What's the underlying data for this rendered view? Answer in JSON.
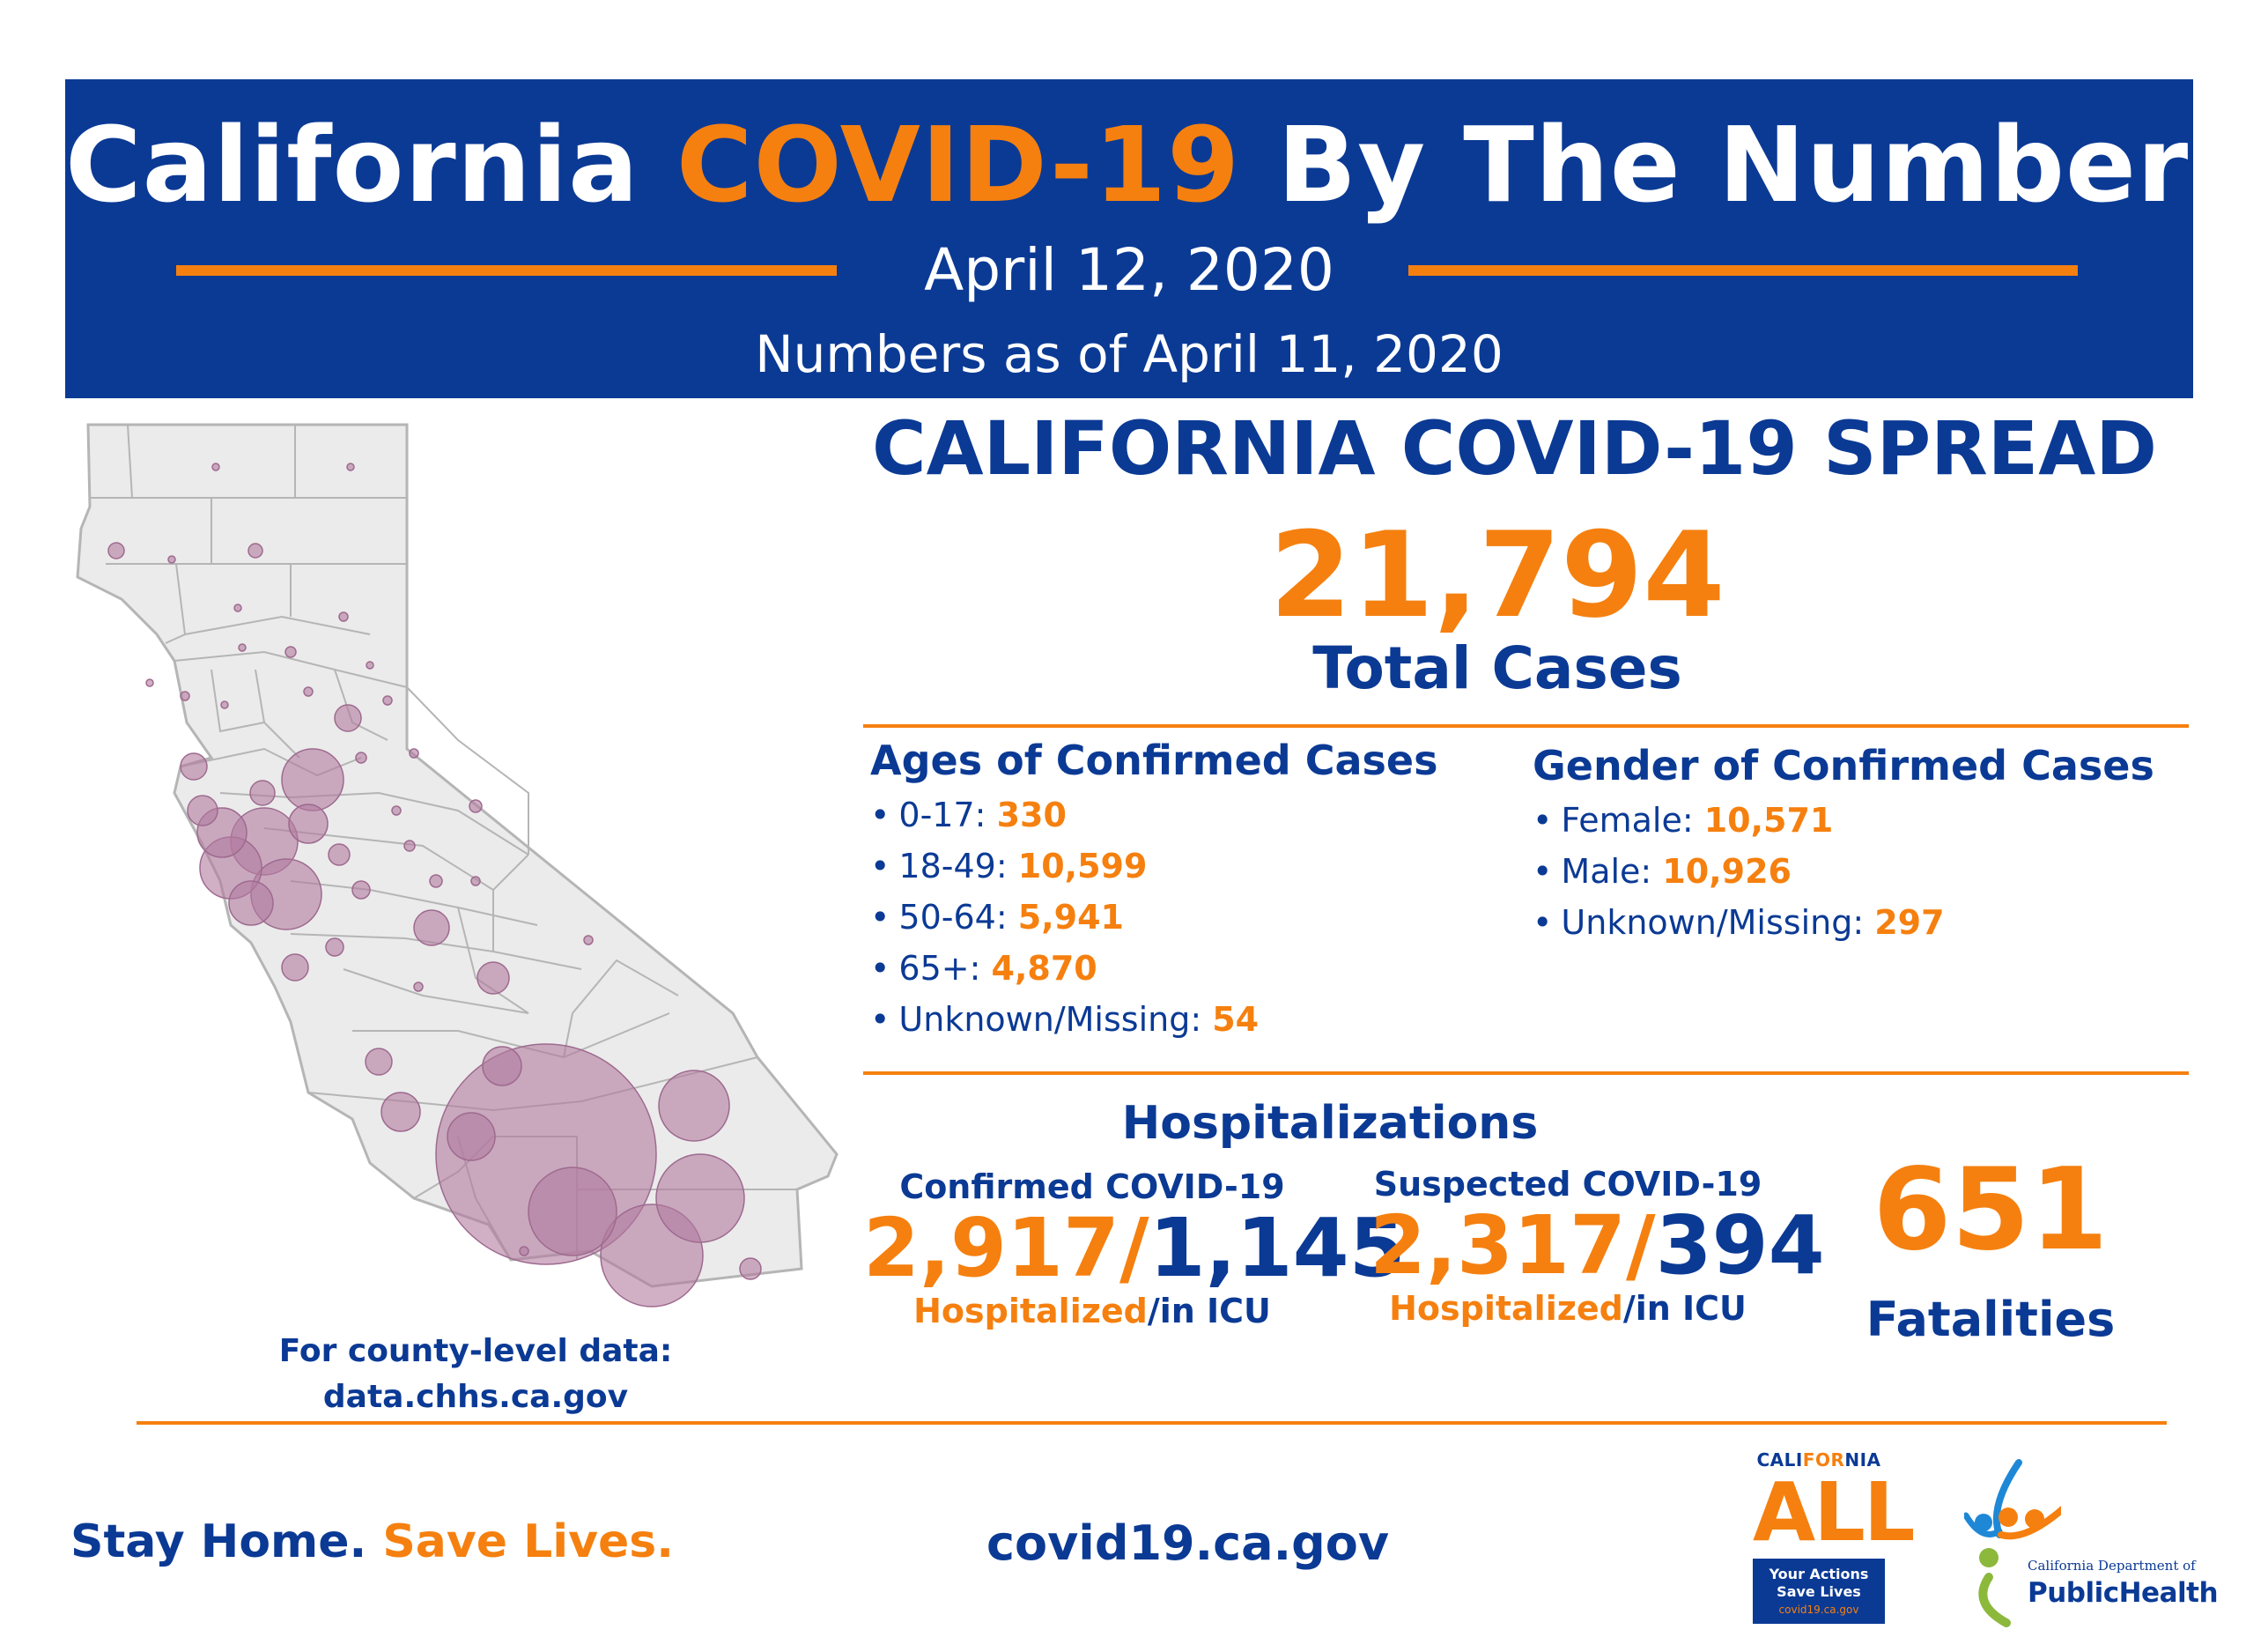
{
  "header": {
    "title_part1": "California",
    "title_accent": "COVID-19",
    "title_part2": "By The Numbers",
    "date": "April 12, 2020",
    "as_of": "Numbers as of April 11, 2020"
  },
  "spread": {
    "title": "CALIFORNIA COVID-19 SPREAD",
    "total_cases": "21,794",
    "total_label": "Total Cases"
  },
  "ages": {
    "heading": "Ages of Confirmed Cases",
    "items": [
      {
        "label": "0-17:",
        "value": "330"
      },
      {
        "label": "18-49:",
        "value": "10,599"
      },
      {
        "label": "50-64:",
        "value": "5,941"
      },
      {
        "label": "65+:",
        "value": "4,870"
      },
      {
        "label": "Unknown/Missing:",
        "value": "54"
      }
    ]
  },
  "gender": {
    "heading": "Gender of Confirmed Cases",
    "items": [
      {
        "label": "Female:",
        "value": "10,571"
      },
      {
        "label": "Male:",
        "value": "10,926"
      },
      {
        "label": "Unknown/Missing:",
        "value": "297"
      }
    ]
  },
  "hospitalizations": {
    "heading": "Hospitalizations",
    "confirmed": {
      "label": "Confirmed COVID-19",
      "hospitalized": "2,917/",
      "icu": "1,145",
      "sub_hosp": "Hospitalized",
      "sub_icu": "/in ICU"
    },
    "suspected": {
      "label": "Suspected COVID-19",
      "hospitalized": "2,317/",
      "icu": "394",
      "sub_hosp": "Hospitalized",
      "sub_icu": "/in ICU"
    }
  },
  "fatalities": {
    "number": "651",
    "label": "Fatalities"
  },
  "county_note": {
    "line1": "For county-level data:",
    "line2": "data.chhs.ca.gov"
  },
  "footer": {
    "slogan_part1": "Stay Home.",
    "slogan_part2": "Save Lives.",
    "website": "covid19.ca.gov"
  },
  "logos": {
    "ca_for_all": {
      "top_part1": "CALI",
      "top_accent": "FOR",
      "top_part2": "NIA",
      "main": "ALL",
      "tagline_line1": "Your Actions",
      "tagline_line2": "Save Lives",
      "url": "covid19.ca.gov"
    },
    "cdph": {
      "dept": "California Department of",
      "name": "PublicHealth"
    }
  },
  "colors": {
    "brand_blue": "#0b3a95",
    "accent_orange": "#f5800f",
    "bubble": "#b27ba0"
  }
}
